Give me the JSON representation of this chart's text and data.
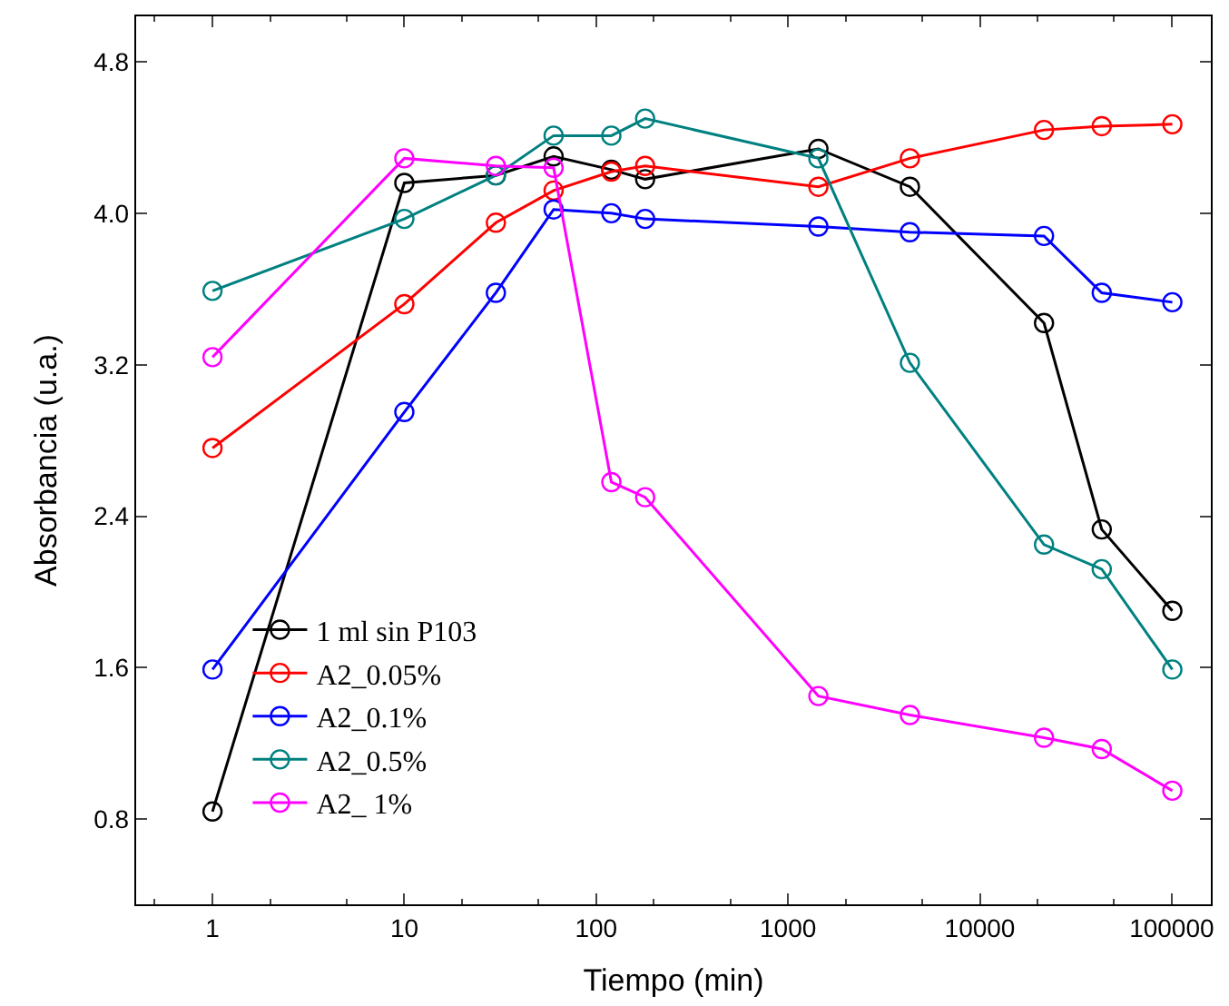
{
  "chart_data": {
    "type": "line",
    "xlabel": "Tiempo (min)",
    "ylabel": "Absorbancia (u.a.)",
    "x": [
      1,
      10,
      30,
      60,
      120,
      180,
      1440,
      4320,
      21600,
      43200,
      100800
    ],
    "log": "x",
    "xlim": [
      0.4,
      160000
    ],
    "xticks": [
      1,
      10,
      100,
      1000,
      10000,
      100000
    ],
    "ylim": [
      0.35,
      5.04
    ],
    "yticks": [
      {
        "value": 0.8,
        "label": "0.8"
      },
      {
        "value": 1.6,
        "label": "1.6"
      },
      {
        "value": 2.4,
        "label": "2.4"
      },
      {
        "value": 3.2,
        "label": "3.2"
      },
      {
        "value": 4.0,
        "label": "4.0"
      },
      {
        "value": 4.8,
        "label": "4.8"
      }
    ],
    "legend": "bottom left",
    "marker": "circle",
    "line_style": "solid",
    "series": [
      {
        "name": "1 ml sin P103",
        "color": "#000000",
        "values": [
          0.84,
          4.16,
          4.2,
          4.3,
          4.23,
          4.18,
          4.34,
          4.14,
          3.42,
          2.33,
          1.9
        ]
      },
      {
        "name": "A2_0.05%",
        "color": "#ff0000",
        "values": [
          2.76,
          3.52,
          3.95,
          4.12,
          4.22,
          4.25,
          4.14,
          4.29,
          4.44,
          4.46,
          4.47
        ]
      },
      {
        "name": "A2_0.1%",
        "color": "#0000ff",
        "values": [
          1.59,
          2.95,
          3.58,
          4.02,
          4.0,
          3.97,
          3.93,
          3.9,
          3.88,
          3.58,
          3.53
        ]
      },
      {
        "name": "A2_0.5%",
        "color": "#008080",
        "values": [
          3.59,
          3.97,
          4.2,
          4.41,
          4.41,
          4.5,
          4.29,
          3.21,
          2.25,
          2.12,
          1.59
        ]
      },
      {
        "name": "A2_ 1%",
        "color": "#ff00ff",
        "values": [
          3.24,
          4.29,
          4.25,
          4.24,
          2.58,
          2.5,
          1.45,
          1.35,
          1.23,
          1.17,
          0.95
        ]
      }
    ]
  }
}
